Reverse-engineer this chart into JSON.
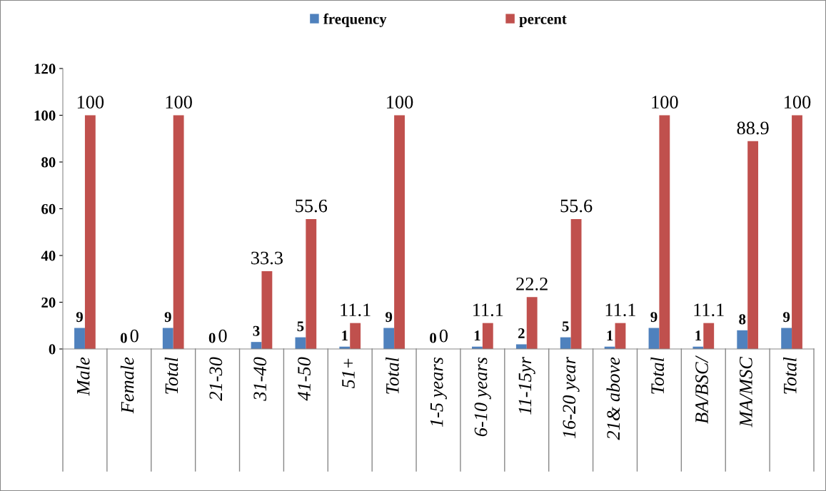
{
  "chart_data": {
    "type": "bar",
    "categories": [
      "Male",
      "Female",
      "Total",
      "21-30",
      "31-40",
      "41-50",
      "51+",
      "Total",
      "1-5 years",
      "6-10 years",
      "11-15yr",
      "16-20 year",
      "21& above",
      "Total",
      "BA/BSC/",
      "MA/MSC",
      "Total"
    ],
    "series": [
      {
        "name": "frequency",
        "color": "#4f81bd",
        "values": [
          9,
          0,
          9,
          0,
          3,
          5,
          1,
          9,
          0,
          1,
          2,
          5,
          1,
          9,
          1,
          8,
          9
        ]
      },
      {
        "name": "percent",
        "color": "#c0504d",
        "values": [
          100,
          0,
          100,
          0,
          33.3,
          55.6,
          11.1,
          100,
          0,
          11.1,
          22.2,
          55.6,
          11.1,
          100,
          11.1,
          88.9,
          100
        ]
      }
    ],
    "ylim": [
      0,
      120
    ],
    "yticks": [
      0,
      20,
      40,
      60,
      80,
      100,
      120
    ],
    "grid": false,
    "legend": "top",
    "data_labels": true
  }
}
